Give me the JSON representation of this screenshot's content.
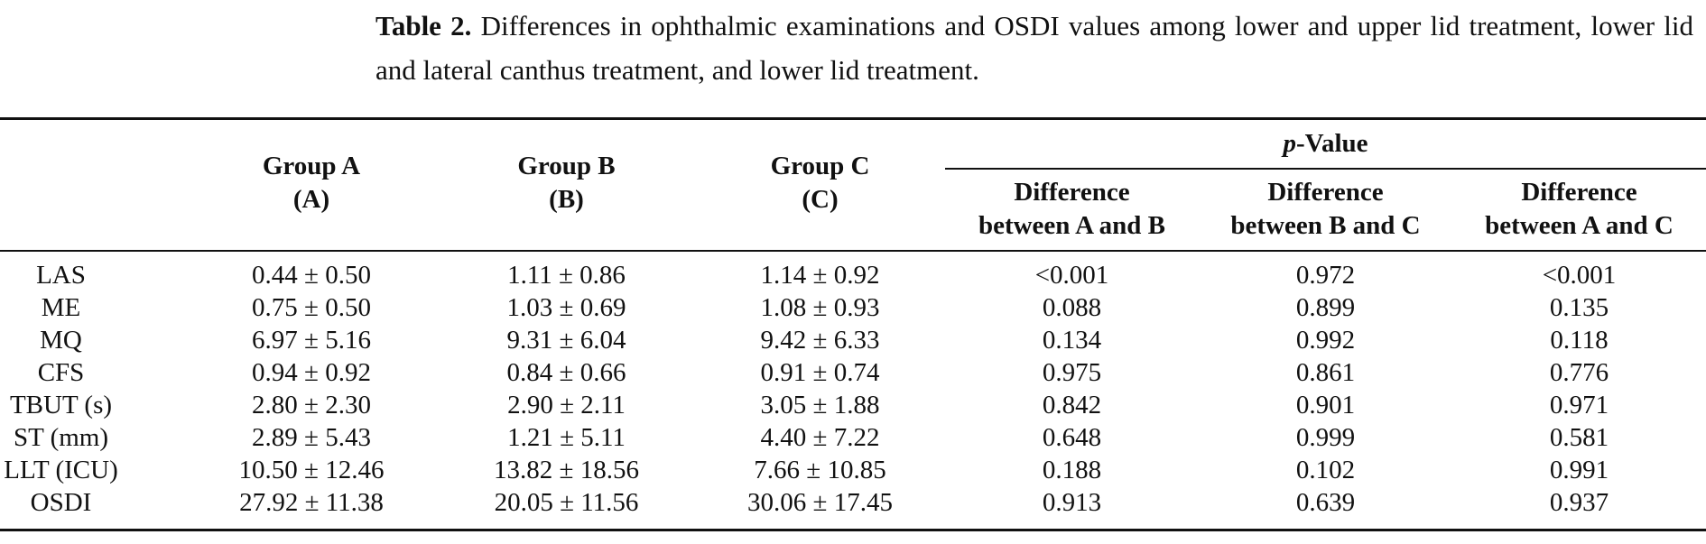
{
  "caption": {
    "label": "Table 2.",
    "text": "Differences in ophthalmic examinations and OSDI values among lower and upper lid treatment, lower lid and lateral canthus treatment, and lower lid treatment."
  },
  "header": {
    "groups": [
      {
        "name": "Group A",
        "code": "(A)"
      },
      {
        "name": "Group B",
        "code": "(B)"
      },
      {
        "name": "Group C",
        "code": "(C)"
      }
    ],
    "pvalue_prefix": "p",
    "pvalue_suffix": "-Value",
    "differences": [
      {
        "line1": "Difference",
        "line2": "between A and B"
      },
      {
        "line1": "Difference",
        "line2": "between B and C"
      },
      {
        "line1": "Difference",
        "line2": "between A and C"
      }
    ]
  },
  "rows": [
    {
      "label": "LAS",
      "a": "0.44 ± 0.50",
      "b": "1.11 ± 0.86",
      "c": "1.14 ± 0.92",
      "ab": "<0.001",
      "bc": "0.972",
      "ac": "<0.001"
    },
    {
      "label": "ME",
      "a": "0.75 ± 0.50",
      "b": "1.03 ± 0.69",
      "c": "1.08 ± 0.93",
      "ab": "0.088",
      "bc": "0.899",
      "ac": "0.135"
    },
    {
      "label": "MQ",
      "a": "6.97 ± 5.16",
      "b": "9.31 ± 6.04",
      "c": "9.42 ± 6.33",
      "ab": "0.134",
      "bc": "0.992",
      "ac": "0.118"
    },
    {
      "label": "CFS",
      "a": "0.94 ± 0.92",
      "b": "0.84 ± 0.66",
      "c": "0.91 ± 0.74",
      "ab": "0.975",
      "bc": "0.861",
      "ac": "0.776"
    },
    {
      "label": "TBUT (s)",
      "a": "2.80 ± 2.30",
      "b": "2.90 ± 2.11",
      "c": "3.05 ± 1.88",
      "ab": "0.842",
      "bc": "0.901",
      "ac": "0.971"
    },
    {
      "label": "ST (mm)",
      "a": "2.89 ± 5.43",
      "b": "1.21 ± 5.11",
      "c": "4.40 ± 7.22",
      "ab": "0.648",
      "bc": "0.999",
      "ac": "0.581"
    },
    {
      "label": "LLT (ICU)",
      "a": "10.50 ± 12.46",
      "b": "13.82 ± 18.56",
      "c": "7.66 ± 10.85",
      "ab": "0.188",
      "bc": "0.102",
      "ac": "0.991"
    },
    {
      "label": "OSDI",
      "a": "27.92 ± 11.38",
      "b": "20.05 ± 11.56",
      "c": "30.06 ± 17.45",
      "ab": "0.913",
      "bc": "0.639",
      "ac": "0.937"
    }
  ]
}
